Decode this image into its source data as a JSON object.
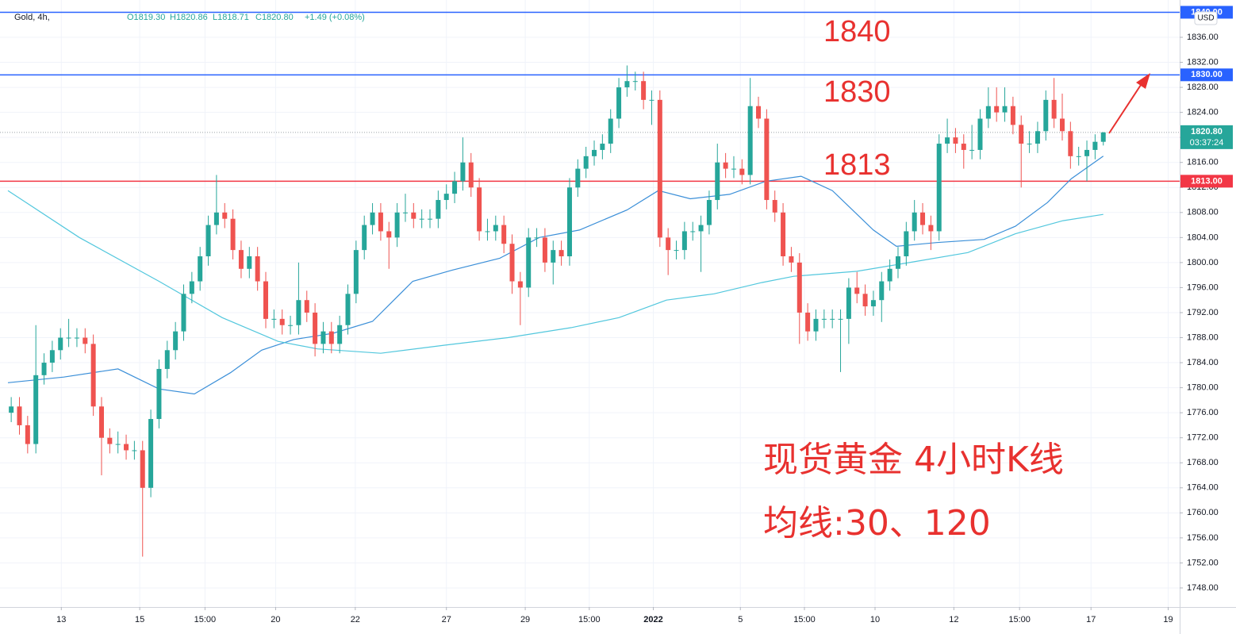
{
  "chart_data": {
    "type": "candlestick",
    "header": {
      "symbol": "Gold, 4h,",
      "ohlc_text": [
        "O1819.30",
        "H1820.86",
        "L1818.71",
        "C1820.80",
        "+1.49 (+0.08%)"
      ],
      "currency": "USD"
    },
    "up_color": "#26a69a",
    "down_color": "#ef5350",
    "ylim": [
      1744.95,
      1841.96
    ],
    "yticks": [
      {
        "value": 1748,
        "label": "1748.00"
      },
      {
        "value": 1752,
        "label": "1752.00"
      },
      {
        "value": 1756,
        "label": "1756.00"
      },
      {
        "value": 1760,
        "label": "1760.00"
      },
      {
        "value": 1764,
        "label": "1764.00"
      },
      {
        "value": 1768,
        "label": "1768.00"
      },
      {
        "value": 1772,
        "label": "1772.00"
      },
      {
        "value": 1776,
        "label": "1776.00"
      },
      {
        "value": 1780,
        "label": "1780.00"
      },
      {
        "value": 1784,
        "label": "1784.00"
      },
      {
        "value": 1788,
        "label": "1788.00"
      },
      {
        "value": 1792,
        "label": "1792.00"
      },
      {
        "value": 1796,
        "label": "1796.00"
      },
      {
        "value": 1800,
        "label": "1800.00"
      },
      {
        "value": 1804,
        "label": "1804.00"
      },
      {
        "value": 1808,
        "label": "1808.00"
      },
      {
        "value": 1812,
        "label": "1812.00"
      },
      {
        "value": 1816,
        "label": "1816.00"
      },
      {
        "value": 1820,
        "label": "1820.00"
      },
      {
        "value": 1824,
        "label": "1824.00"
      },
      {
        "value": 1828,
        "label": "1828.00"
      },
      {
        "value": 1832,
        "label": "1832.00"
      },
      {
        "value": 1836,
        "label": "1836.00"
      }
    ],
    "xlim": [
      0.6,
      143.3
    ],
    "xticks": [
      {
        "value": 7.1,
        "label": "13"
      },
      {
        "value": 16.65,
        "label": "15"
      },
      {
        "value": 24.6,
        "label": "15:00"
      },
      {
        "value": 33.2,
        "label": "20"
      },
      {
        "value": 42.9,
        "label": "22"
      },
      {
        "value": 54,
        "label": "27"
      },
      {
        "value": 63.6,
        "label": "29"
      },
      {
        "value": 71.4,
        "label": "15:00"
      },
      {
        "value": 79.2,
        "label": "2022"
      },
      {
        "value": 89.8,
        "label": "5"
      },
      {
        "value": 97.6,
        "label": "15:00"
      },
      {
        "value": 106.2,
        "label": "10"
      },
      {
        "value": 115.8,
        "label": "12"
      },
      {
        "value": 123.8,
        "label": "15:00"
      },
      {
        "value": 132.5,
        "label": "17"
      },
      {
        "value": 141.9,
        "label": "19"
      }
    ],
    "grid": true,
    "candles": [
      [
        1776,
        1778.5,
        1774.5,
        1777
      ],
      [
        1777,
        1778.5,
        1772.5,
        1774
      ],
      [
        1774,
        1775.5,
        1769.5,
        1771
      ],
      [
        1771,
        1790,
        1769.5,
        1782
      ],
      [
        1782,
        1785.5,
        1780.5,
        1784
      ],
      [
        1784,
        1787.5,
        1782.5,
        1786
      ],
      [
        1786,
        1789.5,
        1784.5,
        1788
      ],
      [
        1788,
        1791,
        1786.5,
        1788
      ],
      [
        1788,
        1789.5,
        1786.5,
        1788
      ],
      [
        1788,
        1789.5,
        1785.5,
        1787
      ],
      [
        1787,
        1788.5,
        1775.5,
        1777
      ],
      [
        1777,
        1778.5,
        1766,
        1772
      ],
      [
        1772,
        1773.5,
        1769.5,
        1771
      ],
      [
        1771,
        1773,
        1769.5,
        1771
      ],
      [
        1771,
        1772.5,
        1768.5,
        1770
      ],
      [
        1770,
        1771.5,
        1768.5,
        1770
      ],
      [
        1770,
        1771.5,
        1753,
        1764
      ],
      [
        1764,
        1776.5,
        1762.5,
        1775
      ],
      [
        1775,
        1784.5,
        1773.5,
        1783
      ],
      [
        1783,
        1787.5,
        1781.5,
        1786
      ],
      [
        1786,
        1790.5,
        1784.5,
        1789
      ],
      [
        1789,
        1796.5,
        1787.5,
        1795
      ],
      [
        1795,
        1798.5,
        1793.5,
        1797
      ],
      [
        1797,
        1802.5,
        1795.5,
        1801
      ],
      [
        1801,
        1807.5,
        1799.5,
        1806
      ],
      [
        1806,
        1814,
        1804.5,
        1808
      ],
      [
        1808,
        1809.5,
        1805.5,
        1807
      ],
      [
        1807,
        1808.5,
        1800.5,
        1802
      ],
      [
        1802,
        1803.5,
        1797.5,
        1799
      ],
      [
        1799,
        1802.5,
        1797.5,
        1801
      ],
      [
        1801,
        1802.5,
        1795.5,
        1797
      ],
      [
        1797,
        1798.5,
        1789.5,
        1791
      ],
      [
        1791,
        1792.5,
        1789.5,
        1791
      ],
      [
        1791,
        1792.5,
        1788.5,
        1790
      ],
      [
        1790,
        1791.5,
        1788.5,
        1790
      ],
      [
        1790,
        1800,
        1788.5,
        1794
      ],
      [
        1794,
        1795.5,
        1790.5,
        1792
      ],
      [
        1792,
        1793.5,
        1785,
        1787
      ],
      [
        1787,
        1790.5,
        1785.5,
        1789
      ],
      [
        1789,
        1790.5,
        1785.5,
        1787
      ],
      [
        1787,
        1791.5,
        1785.5,
        1790
      ],
      [
        1790,
        1796.5,
        1788.5,
        1795
      ],
      [
        1795,
        1803.5,
        1793.5,
        1802
      ],
      [
        1802,
        1807.5,
        1800.5,
        1806
      ],
      [
        1806,
        1809.5,
        1804.5,
        1808
      ],
      [
        1808,
        1809.5,
        1803.5,
        1805
      ],
      [
        1805,
        1806.5,
        1799,
        1804
      ],
      [
        1804,
        1809.5,
        1802.5,
        1808
      ],
      [
        1808,
        1811,
        1806.5,
        1808
      ],
      [
        1808,
        1809.5,
        1805.5,
        1807
      ],
      [
        1807,
        1808.5,
        1805.5,
        1807
      ],
      [
        1807,
        1808.5,
        1805.5,
        1807
      ],
      [
        1807,
        1811.5,
        1805.5,
        1810
      ],
      [
        1810,
        1812.5,
        1808.5,
        1811
      ],
      [
        1811,
        1814.5,
        1809.5,
        1813
      ],
      [
        1813,
        1820,
        1811.5,
        1816
      ],
      [
        1816,
        1817.5,
        1810.5,
        1812
      ],
      [
        1812,
        1813.5,
        1803.5,
        1805
      ],
      [
        1805,
        1807,
        1803.5,
        1805
      ],
      [
        1805,
        1807.5,
        1803.5,
        1806
      ],
      [
        1806,
        1807.5,
        1801.5,
        1803
      ],
      [
        1803,
        1804.5,
        1795,
        1797
      ],
      [
        1797,
        1798.5,
        1790,
        1796
      ],
      [
        1796,
        1805.5,
        1794.5,
        1804
      ],
      [
        1804,
        1805.5,
        1802.5,
        1804
      ],
      [
        1804,
        1805.5,
        1798.5,
        1800
      ],
      [
        1800,
        1803.5,
        1796.5,
        1802
      ],
      [
        1802,
        1803.5,
        1799.5,
        1801
      ],
      [
        1801,
        1813.5,
        1799.5,
        1812
      ],
      [
        1812,
        1816.5,
        1810.5,
        1815
      ],
      [
        1815,
        1818.5,
        1813.5,
        1817
      ],
      [
        1817,
        1819.5,
        1815.5,
        1818
      ],
      [
        1818,
        1820.5,
        1816.5,
        1819
      ],
      [
        1819,
        1824.5,
        1817.5,
        1823
      ],
      [
        1823,
        1829.5,
        1821.5,
        1828
      ],
      [
        1828,
        1831.5,
        1826.5,
        1829
      ],
      [
        1829,
        1830.5,
        1827.5,
        1829
      ],
      [
        1829,
        1830.5,
        1824.5,
        1826
      ],
      [
        1826,
        1827.5,
        1822,
        1826
      ],
      [
        1826,
        1827.5,
        1802.5,
        1804
      ],
      [
        1804,
        1805.5,
        1798,
        1802
      ],
      [
        1802,
        1803.5,
        1800.5,
        1802
      ],
      [
        1802,
        1806.5,
        1800.5,
        1805
      ],
      [
        1805,
        1806.5,
        1803.5,
        1805
      ],
      [
        1805,
        1807.5,
        1798.5,
        1806
      ],
      [
        1806,
        1811.5,
        1804.5,
        1810
      ],
      [
        1810,
        1819,
        1808.5,
        1816
      ],
      [
        1816,
        1817.5,
        1813.5,
        1815
      ],
      [
        1815,
        1817,
        1813.5,
        1815
      ],
      [
        1815,
        1816.5,
        1812.5,
        1814
      ],
      [
        1814,
        1829.5,
        1812.5,
        1825
      ],
      [
        1825,
        1826.5,
        1821.5,
        1823
      ],
      [
        1823,
        1824.5,
        1808.5,
        1810
      ],
      [
        1810,
        1811.5,
        1806.5,
        1808
      ],
      [
        1808,
        1809.5,
        1799.5,
        1801
      ],
      [
        1801,
        1802.5,
        1798.5,
        1800
      ],
      [
        1800,
        1801.5,
        1787,
        1792
      ],
      [
        1792,
        1793.5,
        1787.5,
        1789
      ],
      [
        1789,
        1792.5,
        1787.5,
        1791
      ],
      [
        1791,
        1792.5,
        1789.5,
        1791
      ],
      [
        1791,
        1792.5,
        1789.5,
        1791
      ],
      [
        1791,
        1792.5,
        1782.5,
        1791
      ],
      [
        1791,
        1797.5,
        1787,
        1796
      ],
      [
        1796,
        1798.5,
        1793.5,
        1795
      ],
      [
        1795,
        1796.5,
        1791.5,
        1793
      ],
      [
        1793,
        1795.5,
        1791.5,
        1794
      ],
      [
        1794,
        1798.5,
        1790.5,
        1797
      ],
      [
        1797,
        1800.5,
        1795.5,
        1799
      ],
      [
        1799,
        1802.5,
        1797.5,
        1801
      ],
      [
        1801,
        1806.5,
        1799.5,
        1805
      ],
      [
        1805,
        1810,
        1803.5,
        1808
      ],
      [
        1808,
        1809.5,
        1804.5,
        1806
      ],
      [
        1806,
        1807.5,
        1802,
        1805
      ],
      [
        1805,
        1820.5,
        1803.5,
        1819
      ],
      [
        1819,
        1823,
        1817.5,
        1820
      ],
      [
        1820,
        1821.5,
        1817.5,
        1819
      ],
      [
        1819,
        1820.5,
        1815,
        1818
      ],
      [
        1818,
        1822,
        1816.5,
        1818
      ],
      [
        1818,
        1824.5,
        1816.5,
        1823
      ],
      [
        1823,
        1828,
        1821.5,
        1825
      ],
      [
        1825,
        1828,
        1822.5,
        1824
      ],
      [
        1824,
        1828,
        1822.5,
        1825
      ],
      [
        1825,
        1826.5,
        1820.5,
        1822
      ],
      [
        1822,
        1823.5,
        1812,
        1819
      ],
      [
        1819,
        1821,
        1817.5,
        1819
      ],
      [
        1819,
        1822.5,
        1817.5,
        1821
      ],
      [
        1821,
        1827.5,
        1819.5,
        1826
      ],
      [
        1826,
        1829.5,
        1821.5,
        1823
      ],
      [
        1823,
        1827,
        1819.5,
        1821
      ],
      [
        1821,
        1822.5,
        1815,
        1817
      ],
      [
        1817,
        1818.5,
        1815.5,
        1817
      ],
      [
        1817,
        1819.5,
        1813,
        1818
      ],
      [
        1818,
        1820.5,
        1816.5,
        1819.3
      ],
      [
        1819.3,
        1820.86,
        1818.71,
        1820.8
      ]
    ],
    "moving_averages": [
      {
        "color": "#3b8fd8",
        "x": [
          0.6,
          7.4,
          14,
          19,
          23.3,
          27.7,
          31.5,
          35.4,
          40.2,
          45,
          49.9,
          54.7,
          60.5,
          65.3,
          70.2,
          76,
          79.8,
          83.7,
          88.5,
          92.9,
          97.2,
          101,
          106,
          108.8,
          113.7,
          119.5,
          123.3,
          127.2,
          130.1,
          134
        ],
        "values": [
          1780.8,
          1781.7,
          1783,
          1779.8,
          1779,
          1782.4,
          1786,
          1787.7,
          1788.7,
          1790.6,
          1797,
          1798.8,
          1800.7,
          1804,
          1805.2,
          1808.4,
          1811.5,
          1810.2,
          1810.9,
          1813,
          1813.8,
          1811.5,
          1805.2,
          1802.6,
          1803.2,
          1803.7,
          1805.8,
          1809.6,
          1813.4,
          1817
        ]
      },
      {
        "color": "#52c7dd",
        "x": [
          0.6,
          9.3,
          19,
          26.7,
          33.5,
          38.3,
          46,
          53.8,
          61.5,
          69.2,
          75,
          80.8,
          86.6,
          92.4,
          96.3,
          104,
          110.8,
          117.5,
          123.3,
          129.1,
          134
        ],
        "values": [
          1811.5,
          1804,
          1797,
          1791.2,
          1787.4,
          1786.2,
          1785.5,
          1786.8,
          1788,
          1789.6,
          1791.2,
          1794,
          1795,
          1796.8,
          1797.8,
          1798.6,
          1800.1,
          1801.6,
          1804.6,
          1806.7,
          1807.7
        ]
      }
    ],
    "hlines": [
      {
        "value": 1840,
        "color": "#2962ff",
        "label": "1840.00"
      },
      {
        "value": 1830,
        "color": "#2962ff",
        "label": "1830.00"
      },
      {
        "value": 1813,
        "color": "#f23645",
        "label": "1813.00"
      }
    ],
    "last_price": {
      "value": 1820.8,
      "label": "1820.80",
      "countdown": "03:37:24",
      "color": "#26a69a"
    },
    "annotations": [
      "1840",
      "1830",
      "1813",
      "现货黄金 4小时K线",
      "均线:30、120"
    ]
  }
}
